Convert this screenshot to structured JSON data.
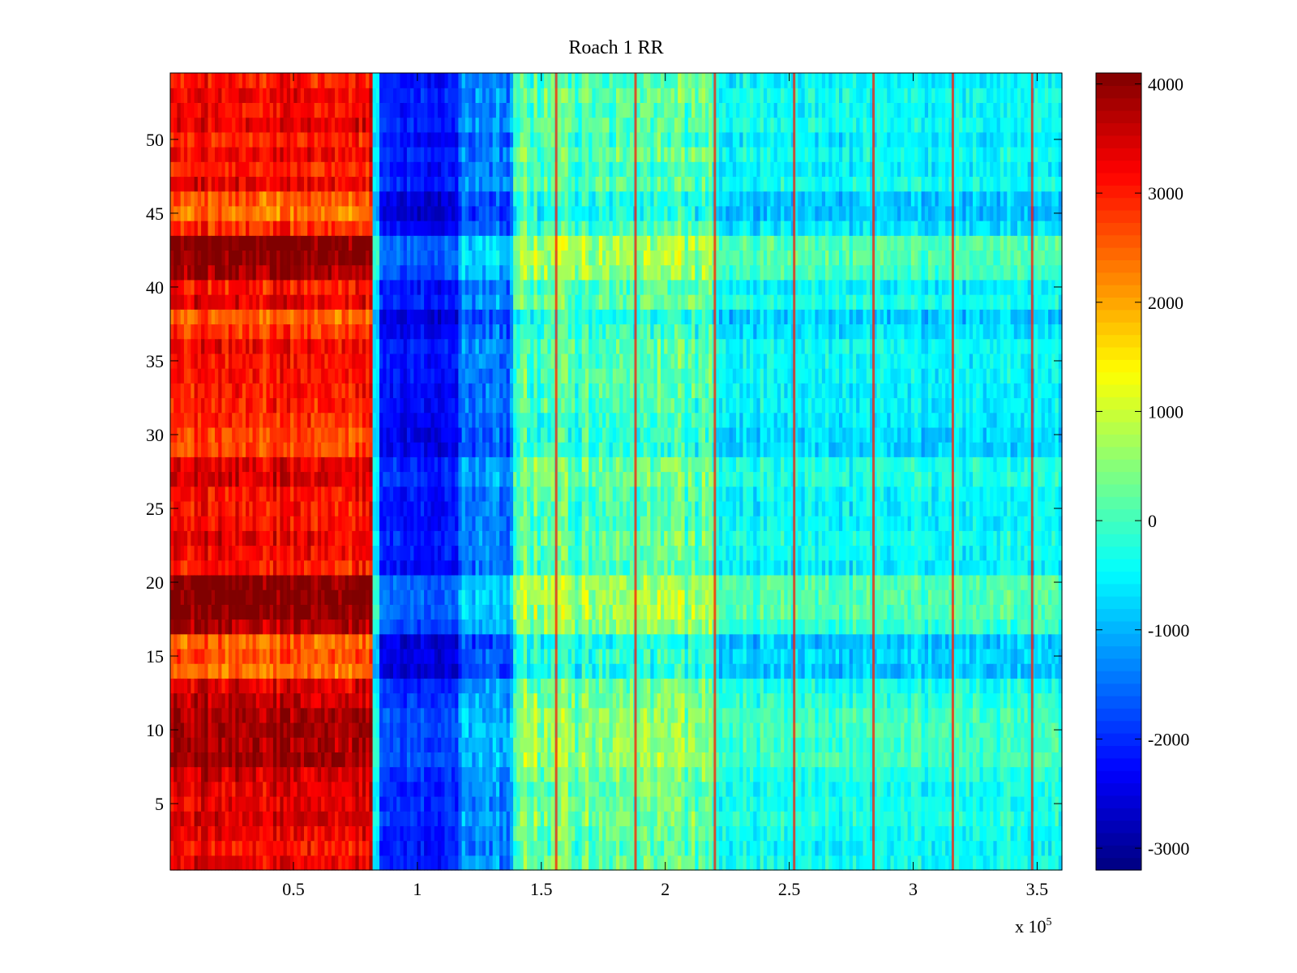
{
  "chart_data": {
    "type": "heatmap",
    "title": "Roach 1 RR",
    "xlabel": "",
    "ylabel": "",
    "x_multiplier_label": "x 10",
    "x_multiplier_exponent": "5",
    "xlim": [
      0.003,
      3.6
    ],
    "ylim": [
      0.5,
      54.5
    ],
    "rows": 54,
    "xticks": [
      0.5,
      1,
      1.5,
      2,
      2.5,
      3,
      3.5
    ],
    "xtick_labels": [
      "0.5",
      "1",
      "1.5",
      "2",
      "2.5",
      "3",
      "3.5"
    ],
    "yticks": [
      5,
      10,
      15,
      20,
      25,
      30,
      35,
      40,
      45,
      50
    ],
    "ytick_labels": [
      "5",
      "10",
      "15",
      "20",
      "25",
      "30",
      "35",
      "40",
      "45",
      "50"
    ],
    "colorbar": {
      "colormap": "jet",
      "clim": [
        -3200,
        4100
      ],
      "ticks": [
        4000,
        3000,
        2000,
        1000,
        0,
        -1000,
        -2000,
        -3000
      ],
      "tick_labels": [
        "4000",
        "3000",
        "2000",
        "1000",
        "0",
        "-1000",
        "-2000",
        "-3000"
      ]
    },
    "segments": [
      {
        "x_start": 0.003,
        "x_end": 0.82,
        "base_value": 3200,
        "noise": 700
      },
      {
        "x_start": 0.82,
        "x_end": 0.85,
        "base_value": -500,
        "noise": 400
      },
      {
        "x_start": 0.85,
        "x_end": 1.16,
        "base_value": -2100,
        "noise": 500
      },
      {
        "x_start": 1.16,
        "x_end": 1.38,
        "base_value": -1300,
        "noise": 700
      },
      {
        "x_start": 1.38,
        "x_end": 2.2,
        "base_value": 200,
        "noise": 900
      },
      {
        "x_start": 2.2,
        "x_end": 3.6,
        "base_value": -400,
        "noise": 600
      }
    ],
    "row_effects": [
      {
        "rows": [
          44,
          46
        ],
        "offset": -900
      },
      {
        "rows": [
          37,
          38
        ],
        "offset": -700
      },
      {
        "rows": [
          29,
          31
        ],
        "offset": -500
      },
      {
        "rows": [
          14,
          16
        ],
        "offset": -600
      },
      {
        "rows": [
          41,
          44
        ],
        "offset": 700
      },
      {
        "rows": [
          17,
          20
        ],
        "offset": 700
      },
      {
        "rows": [
          7,
          12
        ],
        "offset": 500
      }
    ],
    "stripe_x": [
      1.56,
      1.88,
      2.2,
      2.52,
      2.84,
      3.16,
      3.48
    ],
    "stripe_value": 3000
  }
}
